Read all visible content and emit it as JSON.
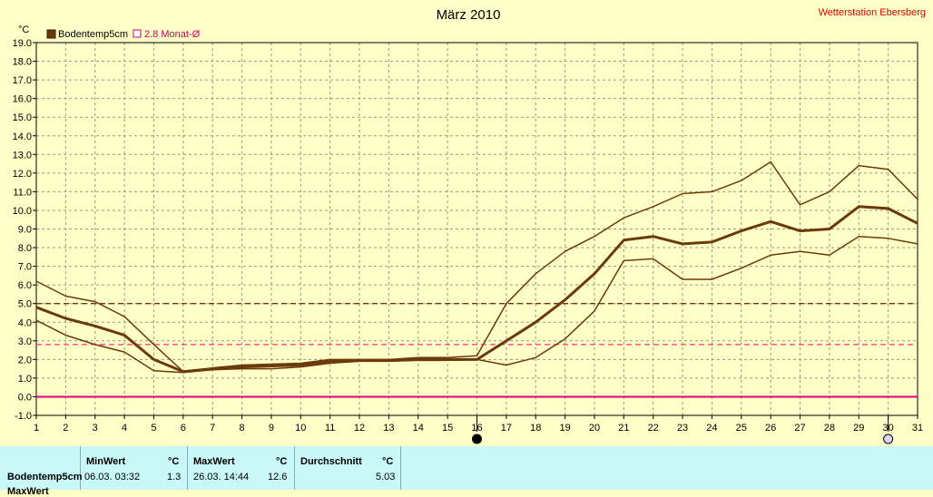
{
  "chart_data": {
    "type": "line",
    "title": "März 2010",
    "station": "Wetterstation Ebersberg",
    "ylabel": "°C",
    "ylim": [
      -1,
      19
    ],
    "yticks": [
      "-1.0",
      "0.0",
      "1.0",
      "2.0",
      "3.0",
      "4.0",
      "5.0",
      "6.0",
      "7.0",
      "8.0",
      "9.0",
      "10.0",
      "11.0",
      "12.0",
      "13.0",
      "14.0",
      "15.0",
      "16.0",
      "17.0",
      "18.0",
      "19.0"
    ],
    "x": [
      1,
      2,
      3,
      4,
      5,
      6,
      7,
      8,
      9,
      10,
      11,
      12,
      13,
      14,
      15,
      16,
      17,
      18,
      19,
      20,
      21,
      22,
      23,
      24,
      25,
      26,
      27,
      28,
      29,
      30,
      31
    ],
    "grid": true,
    "legend": [
      {
        "label": "Bodentemp5cm",
        "color": "#6b3a0a",
        "marker": "filled-square"
      },
      {
        "label": "2.8 Monat-Ø",
        "color": "#cc0066",
        "marker": "hollow-square"
      }
    ],
    "series": [
      {
        "name": "Bodentemp5cm",
        "color": "#6b3a0a",
        "width": 3,
        "values": [
          4.8,
          4.2,
          3.8,
          3.3,
          2.0,
          1.35,
          1.5,
          1.6,
          1.65,
          1.7,
          1.9,
          1.95,
          1.95,
          2.0,
          2.0,
          2.0,
          3.0,
          4.0,
          5.2,
          6.6,
          8.4,
          8.6,
          8.2,
          8.3,
          8.9,
          9.4,
          8.9,
          9.0,
          10.2,
          10.1,
          9.3
        ]
      },
      {
        "color": "#6b3a0a",
        "width": 1.5,
        "values": [
          6.2,
          5.4,
          5.1,
          4.3,
          2.8,
          1.35,
          1.55,
          1.7,
          1.75,
          1.8,
          2.0,
          2.0,
          2.0,
          2.1,
          2.1,
          2.2,
          5.0,
          6.6,
          7.8,
          8.6,
          9.6,
          10.2,
          10.9,
          11.0,
          11.6,
          12.6,
          10.3,
          11.0,
          12.4,
          12.2,
          10.6
        ]
      },
      {
        "color": "#6b3a0a",
        "width": 1.5,
        "values": [
          4.1,
          3.3,
          2.8,
          2.4,
          1.4,
          1.3,
          1.45,
          1.5,
          1.5,
          1.6,
          1.8,
          1.9,
          1.9,
          1.95,
          1.95,
          2.0,
          1.7,
          2.1,
          3.1,
          4.6,
          7.3,
          7.4,
          6.3,
          6.3,
          6.9,
          7.6,
          7.8,
          7.6,
          8.6,
          8.5,
          8.2
        ]
      }
    ],
    "reference_lines": [
      {
        "value": 5.0,
        "color": "#6b3a0a",
        "style": "dashed"
      },
      {
        "value": 2.8,
        "color": "#ff3080",
        "style": "dashed"
      },
      {
        "value": 0.0,
        "color": "#e0007a",
        "style": "solid"
      }
    ],
    "markers": [
      {
        "x": 16,
        "icon": "new-moon-icon",
        "fill": "#000000"
      },
      {
        "x": 30,
        "icon": "full-moon-icon",
        "fill": "#d8d8ff"
      }
    ]
  },
  "stats": {
    "headers": {
      "min": "MinWert",
      "max": "MaxWert",
      "avg": "Durchschnitt",
      "unit": "°C"
    },
    "row_label": "Bodentemp5cm",
    "min_time": "06.03.  03:32",
    "min_value": "1.3",
    "max_time": "26.03.  14:44",
    "max_value": "12.6",
    "avg_value": "5.03",
    "next_row_label": "MaxWert"
  }
}
